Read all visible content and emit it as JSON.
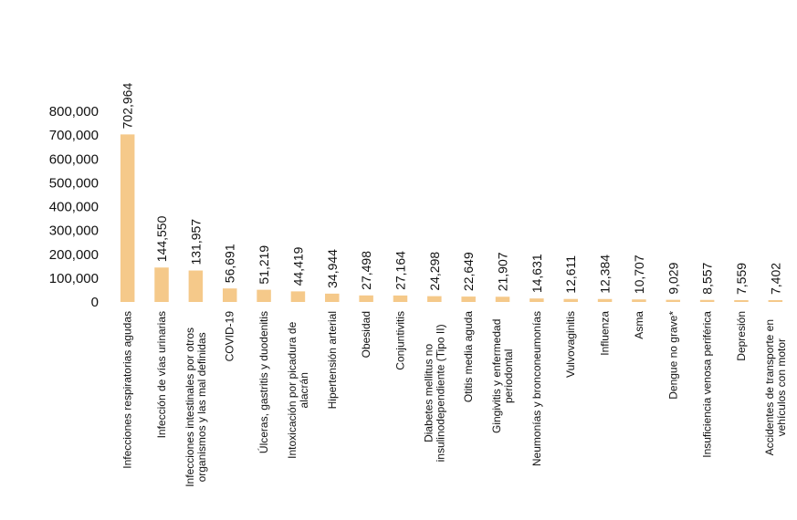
{
  "chart_data": {
    "type": "bar",
    "categories": [
      "Infecciones respiratorias agudas",
      "Infección de vías urinarias",
      "Infecciones intestinales por otros organismos y las mal definidas",
      "COVID-19",
      "Úlceras, gastritis y duodenitis",
      "Intoxicación por picadura de alacrán",
      "Hipertensión arterial",
      "Obesidad",
      "Conjuntivitis",
      "Diabetes mellitus no insulinodependiente (Tipo II)",
      "Otitis media aguda",
      "Gingivitis y enfermedad periodontal",
      "Neumonías y bronconeumonías",
      "Vulvovaginitis",
      "Influenza",
      "Asma",
      "Dengue no grave*",
      "Insuficiencia venosa periférica",
      "Depresión",
      "Accidentes de transporte en vehículos con motor"
    ],
    "category_lines": [
      [
        "Infecciones respiratorias agudas"
      ],
      [
        "Infección de vías urinarias"
      ],
      [
        "Infecciones intestinales por otros",
        "organismos y las mal definidas"
      ],
      [
        "COVID-19"
      ],
      [
        "Úlceras, gastritis y duodenitis"
      ],
      [
        "Intoxicación por picadura de",
        "alacrán"
      ],
      [
        "Hipertensión arterial"
      ],
      [
        "Obesidad"
      ],
      [
        "Conjuntivitis"
      ],
      [
        "Diabetes mellitus no",
        "insulinodependiente (Tipo II)"
      ],
      [
        "Otitis media aguda"
      ],
      [
        "Gingivitis y enfermedad",
        "periodontal"
      ],
      [
        "Neumonías y bronconeumonías"
      ],
      [
        "Vulvovaginitis"
      ],
      [
        "Influenza"
      ],
      [
        "Asma"
      ],
      [
        "Dengue no grave*"
      ],
      [
        "Insuficiencia venosa periférica"
      ],
      [
        "Depresión"
      ],
      [
        "Accidentes de transporte en",
        "vehículos con motor"
      ]
    ],
    "values": [
      702964,
      144550,
      131957,
      56691,
      51219,
      44419,
      34944,
      27498,
      27164,
      24298,
      22649,
      21907,
      14631,
      12611,
      12384,
      10707,
      9029,
      8557,
      7559,
      7402
    ],
    "data_labels": [
      "702,964",
      "144,550",
      "131,957",
      "56,691",
      "51,219",
      "44,419",
      "34,944",
      "27,498",
      "27,164",
      "24,298",
      "22,649",
      "21,907",
      "14,631",
      "12,611",
      "12,384",
      "10,707",
      "9,029",
      "8,557",
      "7,559",
      "7,402"
    ],
    "yticks": [
      0,
      100000,
      200000,
      300000,
      400000,
      500000,
      600000,
      700000,
      800000
    ],
    "ytick_labels": [
      "0",
      "100,000",
      "200,000",
      "300,000",
      "400,000",
      "500,000",
      "600,000",
      "700,000",
      "800,000"
    ],
    "ylim": [
      0,
      800000
    ],
    "title": "",
    "xlabel": "",
    "ylabel": "",
    "grid": false,
    "legend": "none",
    "bar_color": "#F5C98A"
  }
}
